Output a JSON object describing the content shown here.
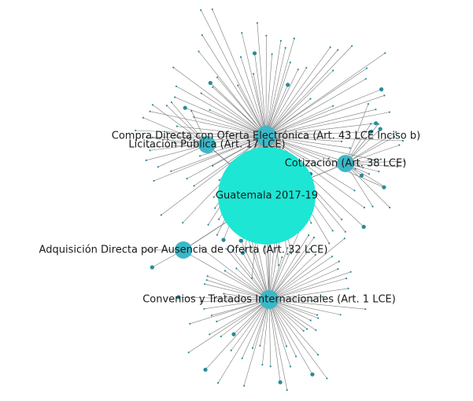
{
  "graph": {
    "colors": {
      "center": "#1ee6d4",
      "hub": "#3bb8c8",
      "leaf": "#2a8a9a",
      "edge": "#7a7a7a"
    },
    "center": {
      "id": "center",
      "label": "Guatemala 2017-19"
    },
    "hubs": [
      {
        "id": "hub-compra-directa",
        "label": "Compra Directa con Oferta Electrónica (Art. 43 LCE Inciso b)"
      },
      {
        "id": "hub-licitacion",
        "label": "Licitación Pública (Art. 17 LCE)"
      },
      {
        "id": "hub-cotizacion",
        "label": "Cotización (Art. 38 LCE)"
      },
      {
        "id": "hub-adquisicion",
        "label": "Adquisición Directa por Ausencia de Oferta (Art. 32 LCE)"
      },
      {
        "id": "hub-convenios",
        "label": "Convenios y Tratados Internacionales (Art. 1 LCE)"
      }
    ]
  }
}
